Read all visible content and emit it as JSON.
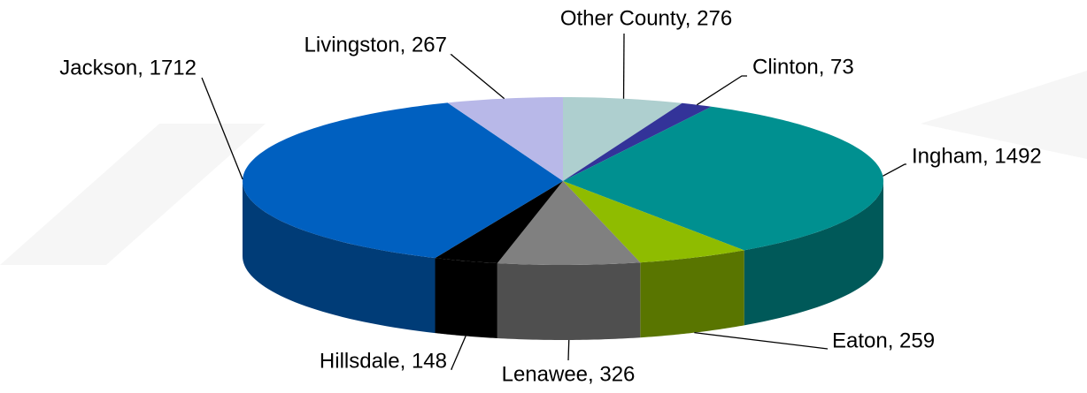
{
  "chart_data": {
    "type": "pie3d",
    "values": [
      276,
      73,
      1492,
      259,
      326,
      148,
      1712,
      267
    ],
    "value_labels": [
      "Other County, 276",
      "Clinton, 73",
      "Ingham, 1492",
      "Eaton, 259",
      "Lenawee, 326",
      "Hillsdale, 148",
      "Jackson, 1712",
      "Livingston, 267"
    ],
    "colors": [
      "#aecfcf",
      "#333399",
      "#009090",
      "#8fbc00",
      "#808080",
      "#000000",
      "#0060c0",
      "#b8b8e8"
    ]
  }
}
